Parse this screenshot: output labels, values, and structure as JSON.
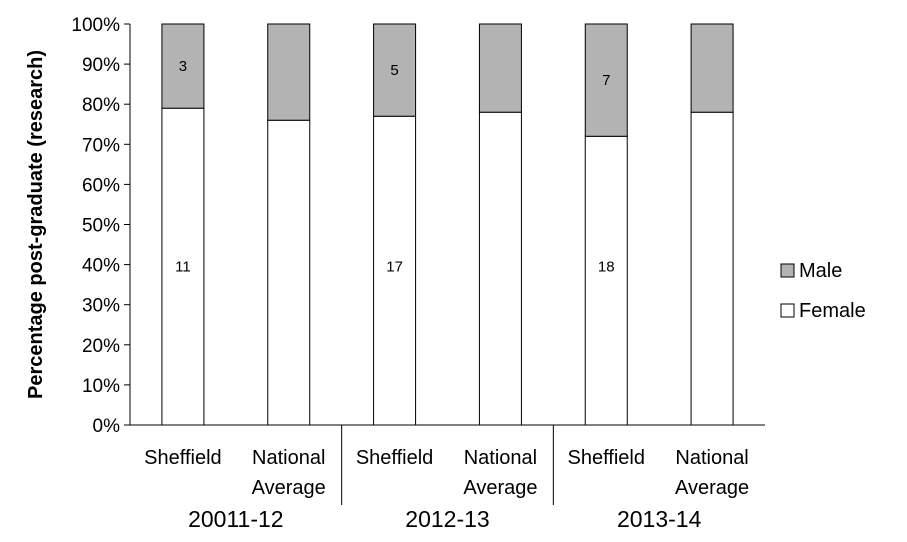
{
  "chart_data": {
    "type": "bar",
    "stacked": true,
    "percent_stacked": true,
    "ylabel": "Percentage post-graduate (research)",
    "xlabel": "",
    "ylim": [
      0,
      100
    ],
    "y_ticks": [
      "0%",
      "10%",
      "20%",
      "30%",
      "40%",
      "50%",
      "60%",
      "70%",
      "80%",
      "90%",
      "100%"
    ],
    "y_tick_values": [
      0,
      10,
      20,
      30,
      40,
      50,
      60,
      70,
      80,
      90,
      100
    ],
    "groups": [
      "20011-12",
      "2012-13",
      "2013-14"
    ],
    "categories": [
      [
        "Sheffield"
      ],
      [
        "National",
        "Average"
      ],
      [
        "Sheffield"
      ],
      [
        "National",
        "Average"
      ],
      [
        "Sheffield"
      ],
      [
        "National",
        "Average"
      ]
    ],
    "category_group": [
      0,
      0,
      1,
      1,
      2,
      2
    ],
    "series": [
      {
        "name": "Female",
        "color": "#ffffff",
        "values": [
          79,
          76,
          77,
          78,
          72,
          78
        ],
        "labels": [
          "11",
          "",
          "17",
          "",
          "18",
          ""
        ]
      },
      {
        "name": "Male",
        "color": "#b3b3b3",
        "values": [
          21,
          24,
          23,
          22,
          28,
          22
        ],
        "labels": [
          "3",
          "",
          "5",
          "",
          "7",
          ""
        ]
      }
    ],
    "legend": {
      "position": "right",
      "order": [
        "Male",
        "Female"
      ]
    },
    "grid": false
  }
}
